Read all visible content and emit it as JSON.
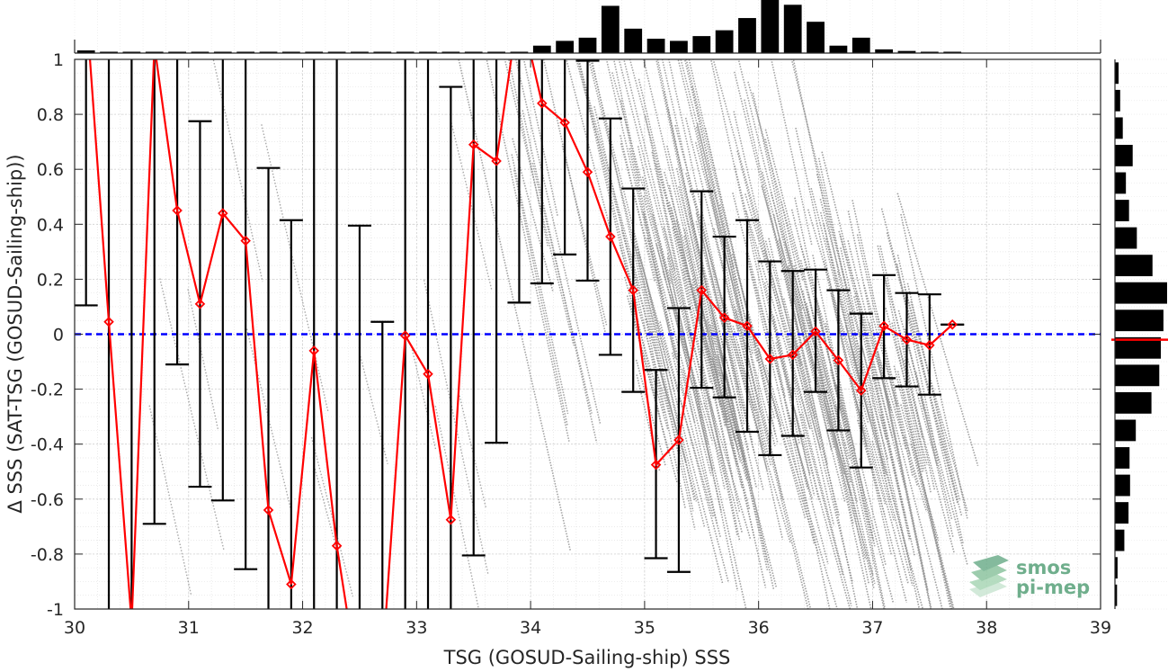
{
  "chart_data": {
    "type": "scatter",
    "xlabel": "TSG (GOSUD-Sailing-ship) SSS",
    "ylabel": "Δ SSS (SAT-TSG (GOSUD-Sailing-ship))",
    "xlim": [
      30,
      39
    ],
    "ylim": [
      -1,
      1
    ],
    "xticks": [
      30,
      31,
      32,
      33,
      34,
      35,
      36,
      37,
      38,
      39
    ],
    "yticks": [
      -1,
      -0.8,
      -0.6,
      -0.4,
      -0.2,
      0,
      0.2,
      0.4,
      0.6,
      0.8,
      1
    ],
    "ytick_labels": [
      "-1",
      "-0.8",
      "-0.6",
      "-0.4",
      "-0.2",
      "0",
      "0.2",
      "0.4",
      "0.6",
      "0.8",
      "1"
    ],
    "grid": true,
    "reference_line": {
      "y": 0,
      "color": "#0000ff",
      "style": "dashed"
    },
    "binned_mean": {
      "color": "#ff0000",
      "x": [
        30.1,
        30.3,
        30.5,
        30.7,
        30.9,
        31.1,
        31.3,
        31.5,
        31.7,
        31.9,
        32.1,
        32.3,
        32.5,
        32.7,
        32.9,
        33.1,
        33.3,
        33.5,
        33.7,
        33.9,
        34.1,
        34.3,
        34.5,
        34.7,
        34.9,
        35.1,
        35.3,
        35.5,
        35.7,
        35.9,
        36.1,
        36.3,
        36.5,
        36.7,
        36.9,
        37.1,
        37.3,
        37.5,
        37.7
      ],
      "mean": [
        1.2,
        0.045,
        -1.05,
        1.05,
        0.45,
        0.11,
        0.44,
        0.34,
        -0.64,
        -0.91,
        -0.06,
        -0.77,
        -1.3,
        -1.2,
        -0.005,
        -0.145,
        -0.675,
        0.69,
        0.63,
        1.2,
        0.84,
        0.77,
        0.59,
        0.355,
        0.16,
        -0.475,
        -0.385,
        0.16,
        0.06,
        0.03,
        -0.09,
        -0.075,
        0.01,
        -0.095,
        -0.205,
        0.03,
        -0.02,
        -0.04,
        0.035
      ],
      "err_low": [
        0.105,
        -1.1,
        -1.1,
        -0.69,
        -0.11,
        -0.555,
        -0.605,
        -0.855,
        -1.1,
        -1.1,
        -1.1,
        -1.1,
        -1.1,
        -1.1,
        -1.1,
        -1.1,
        -1.1,
        -0.805,
        -0.395,
        0.115,
        0.185,
        0.29,
        0.195,
        -0.075,
        -0.21,
        -0.815,
        -0.865,
        -0.195,
        -0.23,
        -0.355,
        -0.44,
        -0.37,
        -0.21,
        -0.35,
        -0.485,
        -0.16,
        -0.19,
        -0.22,
        0.035
      ],
      "err_high": [
        1.1,
        1.1,
        1.1,
        1.1,
        1.1,
        0.775,
        1.1,
        1.1,
        0.605,
        0.415,
        1.1,
        1.1,
        0.395,
        0.045,
        1.1,
        1.1,
        0.9,
        1.1,
        1.1,
        1.1,
        1.1,
        1.1,
        0.995,
        0.785,
        0.53,
        -0.13,
        0.095,
        0.52,
        0.355,
        0.415,
        0.265,
        0.23,
        0.235,
        0.16,
        0.075,
        0.215,
        0.15,
        0.145,
        0.035
      ]
    },
    "top_histogram": {
      "x": [
        30.1,
        30.3,
        30.5,
        30.7,
        30.9,
        31.1,
        31.3,
        31.5,
        31.7,
        31.9,
        32.1,
        32.3,
        32.5,
        32.7,
        32.9,
        33.1,
        33.3,
        33.5,
        33.7,
        33.9,
        34.1,
        34.3,
        34.5,
        34.7,
        34.9,
        35.1,
        35.3,
        35.5,
        35.7,
        35.9,
        36.1,
        36.3,
        36.5,
        36.7,
        36.9,
        37.1,
        37.3,
        37.5,
        37.7
      ],
      "relative_count": [
        0.05,
        0.01,
        0.01,
        0.01,
        0.01,
        0.01,
        0.01,
        0.01,
        0.01,
        0.01,
        0.01,
        0.01,
        0.01,
        0.01,
        0.01,
        0.01,
        0.01,
        0.01,
        0.01,
        0.01,
        0.14,
        0.23,
        0.29,
        0.89,
        0.46,
        0.27,
        0.23,
        0.32,
        0.43,
        0.66,
        1.0,
        0.91,
        0.59,
        0.14,
        0.29,
        0.07,
        0.04,
        0.0,
        0.0
      ]
    },
    "right_histogram": {
      "y": [
        -0.95,
        -0.85,
        -0.75,
        -0.65,
        -0.55,
        -0.45,
        -0.35,
        -0.25,
        -0.15,
        -0.05,
        0.05,
        0.15,
        0.25,
        0.35,
        0.45,
        0.55,
        0.65,
        0.75,
        0.85,
        0.95
      ],
      "relative_count": [
        0.04,
        0.05,
        0.18,
        0.26,
        0.29,
        0.28,
        0.4,
        0.7,
        0.85,
        0.88,
        0.93,
        1.0,
        0.72,
        0.42,
        0.27,
        0.21,
        0.34,
        0.15,
        0.1,
        0.07
      ],
      "median_marker": {
        "y": -0.02,
        "color": "#ff0000"
      }
    }
  },
  "logo": {
    "line1": "smos",
    "line2": "pi-mep",
    "color": "#6fae8c"
  },
  "colors": {
    "errorbar": "#000000",
    "scatter": "#8c8c8c",
    "mean": "#ff0000",
    "zero_line": "#0000ff"
  }
}
